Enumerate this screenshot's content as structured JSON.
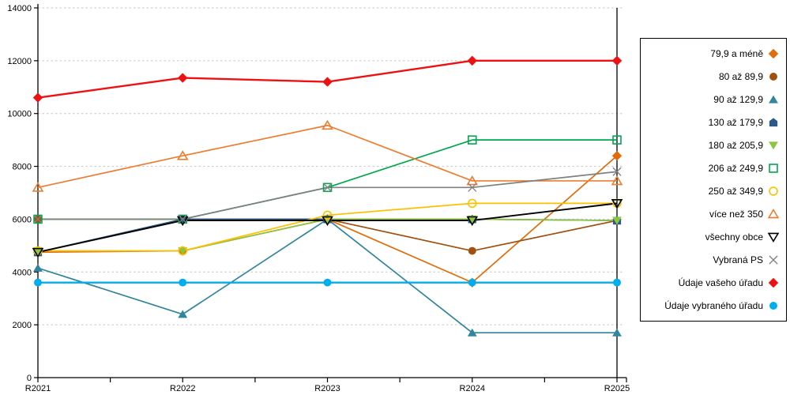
{
  "chart_data": {
    "type": "line",
    "title": "",
    "xlabel": "",
    "ylabel": "",
    "legend_position": "right",
    "grid": "horizontal-dashed",
    "categories": [
      "R2021",
      "R2022",
      "R2023",
      "R2024",
      "R2025"
    ],
    "y_axis": {
      "min": 0,
      "max": 14000,
      "step": 2000
    },
    "series": [
      {
        "name": "79,9 a méně",
        "marker": "diamond",
        "color": "#E36C0A",
        "values": [
          4750,
          4800,
          6000,
          3600,
          8400
        ]
      },
      {
        "name": "80 až 89,9",
        "marker": "circle",
        "color": "#A0500F",
        "values": [
          6000,
          6000,
          6000,
          4800,
          5950
        ]
      },
      {
        "name": "90 až 129,9",
        "marker": "triangle-up",
        "color": "#31859C",
        "values": [
          4150,
          2400,
          6000,
          1700,
          1700
        ]
      },
      {
        "name": "130 až 179,9",
        "marker": "pentagon",
        "color": "#2C5985",
        "values": [
          4750,
          6000,
          6000,
          6000,
          5950
        ]
      },
      {
        "name": "180 až 205,9",
        "marker": "triangle-down",
        "color": "#8CC63F",
        "values": [
          4800,
          4800,
          6000,
          6000,
          5950
        ]
      },
      {
        "name": "206 až 249,9",
        "marker": "square-open",
        "color": "#00A651",
        "values": [
          6000,
          6000,
          7200,
          9000,
          9000
        ]
      },
      {
        "name": "250 až 349,9",
        "marker": "circle-open",
        "color": "#FFC000",
        "values": [
          4800,
          4800,
          6150,
          6600,
          6600
        ]
      },
      {
        "name": "více než 350",
        "marker": "triangle-up-open",
        "color": "#ED7D31",
        "values": [
          7200,
          8400,
          9550,
          7450,
          7450
        ]
      },
      {
        "name": "všechny obce",
        "marker": "triangle-down-open",
        "color": "#000000",
        "values": [
          4750,
          5950,
          5950,
          5950,
          6600
        ]
      },
      {
        "name": "Vybraná PS",
        "marker": "x",
        "color": "#808080",
        "values": [
          6000,
          6000,
          7200,
          7200,
          7800
        ]
      },
      {
        "name": "Údaje vašeho úřadu",
        "marker": "diamond",
        "color": "#EE1111",
        "values": [
          10600,
          11350,
          11200,
          12000,
          12000
        ]
      },
      {
        "name": "Údaje vybraného úřadu",
        "marker": "circle",
        "color": "#00AEEF",
        "values": [
          3600,
          3600,
          3600,
          3600,
          3600
        ]
      }
    ]
  }
}
